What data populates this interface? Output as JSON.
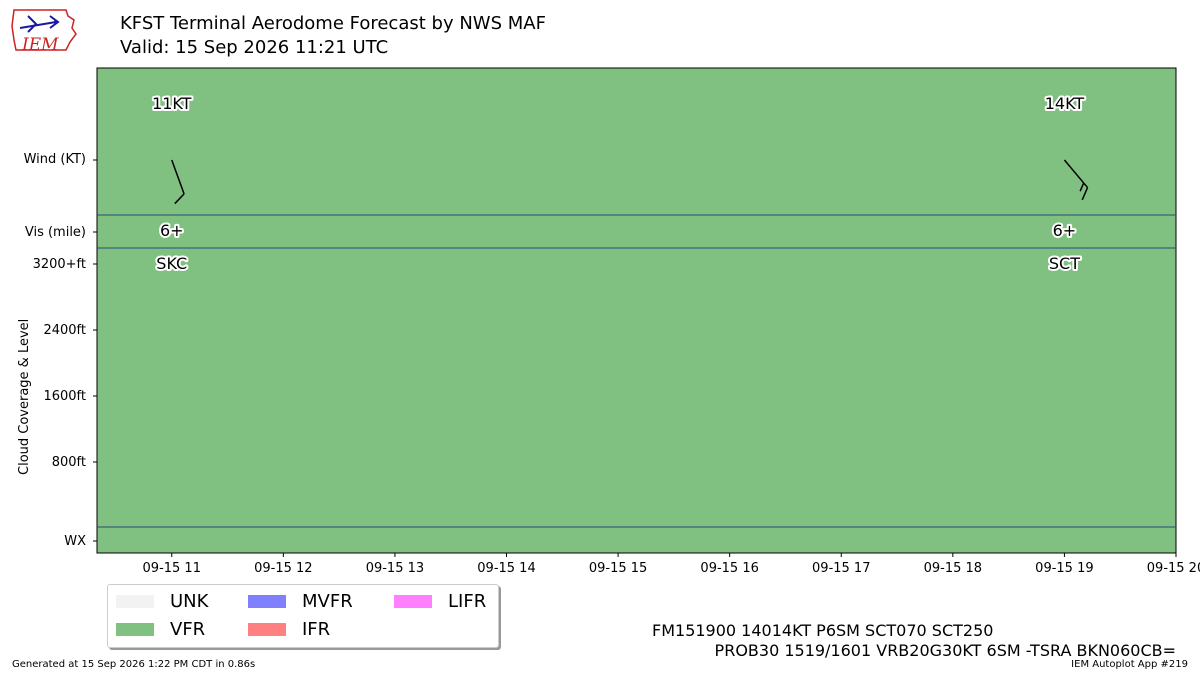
{
  "header": {
    "title": "KFST Terminal Aerodome Forecast by NWS MAF",
    "valid": "Valid: 15 Sep 2026 11:21 UTC",
    "logo_text": "IEM"
  },
  "colors": {
    "background": "#80c080",
    "UNK": "#f2f2f2",
    "VFR": "#80c080",
    "MVFR": "#8080ff",
    "IFR": "#ff8080",
    "LIFR": "#ff80ff",
    "separator": "#2c4a7a"
  },
  "chart_data": {
    "type": "timeline",
    "x_ticks": [
      "09-15 11",
      "09-15 12",
      "09-15 13",
      "09-15 14",
      "09-15 15",
      "09-15 16",
      "09-15 17",
      "09-15 18",
      "09-15 19",
      "09-15 20"
    ],
    "x_range_hours": [
      10.33,
      20
    ],
    "rows": {
      "wind_label": "Wind (KT)",
      "vis_label": "Vis (mile)",
      "wx_label": "WX",
      "cloud_axis_label": "Cloud Coverage & Level",
      "cloud_ticks": [
        "3200+ft",
        "2400ft",
        "1600ft",
        "800ft"
      ]
    },
    "periods": [
      {
        "hour": 11,
        "wind_label": "11KT",
        "wind_speed": 11,
        "wind_dir_deg": 160,
        "vis_label": "6+",
        "cloud_label": "SKC",
        "category": "VFR"
      },
      {
        "hour": 19,
        "wind_label": "14KT",
        "wind_speed": 14,
        "wind_dir_deg": 140,
        "vis_label": "6+",
        "cloud_label": "SCT",
        "category": "VFR"
      }
    ]
  },
  "legend": [
    {
      "label": "UNK",
      "color": "#f2f2f2"
    },
    {
      "label": "MVFR",
      "color": "#8080ff"
    },
    {
      "label": "LIFR",
      "color": "#ff80ff"
    },
    {
      "label": "VFR",
      "color": "#80c080"
    },
    {
      "label": "IFR",
      "color": "#ff8080"
    }
  ],
  "taf_text": {
    "line1": "FM151900 14014KT P6SM SCT070 SCT250",
    "line2": "PROB30 1519/1601 VRB20G30KT 6SM -TSRA BKN060CB="
  },
  "footer": {
    "generated": "Generated at 15 Sep 2026 1:22 PM CDT in 0.86s",
    "app": "IEM Autoplot App #219"
  }
}
